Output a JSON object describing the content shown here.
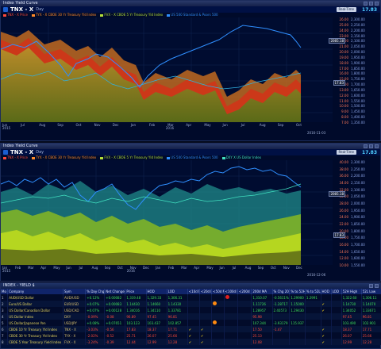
{
  "window1": {
    "title": "Index Yield Curve",
    "symbol": "TNX - X",
    "timeframe": "Day",
    "realtime_label": "Real-Time",
    "last_price": "17.83",
    "legend": [
      {
        "label": "TNX - X Price",
        "color": "#ff4a3a"
      },
      {
        "label": "TYX - X CBOE 30 Yr Treasury Yld Index",
        "color": "#ff8a2a"
      },
      {
        "label": "FVX - X CBOE 5 Yr Treasury Yld Index",
        "color": "#b4e03a"
      },
      {
        "label": "US 500 Standard & Poors 500",
        "color": "#2f8fff"
      }
    ],
    "x_months": [
      "Jun",
      "Jul",
      "Aug",
      "Sep",
      "Oct",
      "Nov",
      "Dec",
      "Jan",
      "Feb",
      "Mar",
      "Apr",
      "May",
      "Jun",
      "Jul",
      "Aug",
      "Sep",
      "Oct"
    ],
    "x_years": [
      "2015",
      "2016"
    ],
    "stamp": "2016-11-03",
    "y_left": [
      "26.00",
      "25.00",
      "24.00",
      "23.00",
      "22.00",
      "21.00",
      "20.00",
      "19.00",
      "18.00",
      "17.00",
      "16.00",
      "15.00",
      "14.00",
      "13.00",
      "12.00",
      "11.00",
      "10.00",
      "9.00",
      "8.00",
      "7.00"
    ],
    "y_right": [
      "2,300.00",
      "2,250.00",
      "2,200.00",
      "2,150.00",
      "2,100.00",
      "2,050.00",
      "2,000.00",
      "1,950.00",
      "1,900.00",
      "1,850.00",
      "1,800.00",
      "1,750.00",
      "1,700.00",
      "1,650.00",
      "1,600.00",
      "1,550.00",
      "1,500.00",
      "1,450.00",
      "1,400.00",
      "1,350.00"
    ],
    "pill_a": "2085.18",
    "pill_b": "17.83"
  },
  "window2": {
    "title": "Index Yield Curve",
    "symbol": "TNX - X",
    "timeframe": "Day",
    "realtime_label": "Real-Time",
    "last_price": "17.83",
    "legend": [
      {
        "label": "TNX - X Price",
        "color": "#ff4a3a"
      },
      {
        "label": "TYX - X CBOE 30 Yr Treasury Yld Index",
        "color": "#ff8a2a"
      },
      {
        "label": "FVX - X CBOE 5 Yr Treasury Yld Index",
        "color": "#b4e03a"
      },
      {
        "label": "US 500 Standard & Poors 500",
        "color": "#2f8fff"
      },
      {
        "label": "DXY X US Dollar Index",
        "color": "#40e0c0"
      }
    ],
    "x_months": [
      "Jan",
      "Feb",
      "Mar",
      "Apr",
      "May",
      "Jun",
      "Jul",
      "Aug",
      "Sep",
      "Oct",
      "Nov",
      "Dec",
      "Jan",
      "Feb",
      "Mar",
      "Apr",
      "May",
      "Jun",
      "Jul",
      "Aug",
      "Sep",
      "Oct",
      "Nov",
      "Dec"
    ],
    "x_years": [
      "2015",
      "2016"
    ],
    "stamp": "2016-12-06",
    "y_left": [
      "40.00",
      "38.00",
      "36.00",
      "34.00",
      "32.00",
      "30.00",
      "28.00",
      "26.00",
      "24.00",
      "22.00",
      "20.00",
      "18.00",
      "16.00",
      "14.00",
      "12.00",
      "10.00"
    ],
    "y_right": [
      "2,300.00",
      "2,250.00",
      "2,200.00",
      "2,150.00",
      "2,100.00",
      "2,050.00",
      "2,000.00",
      "1,950.00",
      "1,900.00",
      "1,850.00",
      "1,800.00",
      "1,750.00",
      "1,700.00",
      "1,650.00",
      "1,600.00",
      "1,550.00"
    ],
    "pill_a": "2085.18",
    "pill_b": "17.83"
  },
  "table": {
    "title": "INDEX - YIELD $",
    "columns": [
      "Mo",
      "Company",
      "Sym",
      "% Day Chg",
      "Net Change",
      "Price",
      "HOD",
      "LOD",
      "<10d MA",
      "<20d MA",
      "<50d MA",
      "<100d MA",
      "<200d MA",
      "200d MA",
      "% Chg 200d MA",
      "% to 52H",
      "% to 52L",
      "HOD",
      "LOD",
      "52H High",
      "52L Low"
    ],
    "rows": [
      {
        "mo": "1",
        "company": "AUD/USD Dollar",
        "sym": "AUD/USD",
        "pct": "+0.12%",
        "net": "+0.00082",
        "price": "1,319.48",
        "hod": "1,329.33",
        "lod": "1,306.31",
        "c10": "",
        "c20": "",
        "c50": "",
        "c100": "dot-red",
        "c200": "",
        "ma200": "1,310.07",
        "pct200": "-0.5611%",
        "to52h": "1.29900",
        "to52l": "1.2991",
        "hod2": "",
        "lod2": "",
        "h52": "1,322.60",
        "l52": "1,306.11",
        "sign": "pos"
      },
      {
        "mo": "2",
        "company": "Euro/US Dollar",
        "sym": "EUR/USD",
        "pct": "+0.07%",
        "net": "+0.00083",
        "price": "1.14430",
        "hod": "1.14660",
        "lod": "1.14330",
        "c10": "",
        "c20": "",
        "c50": "dot-orange",
        "c100": "",
        "c200": "",
        "ma200": "1.11726",
        "pct200": "-1.28717",
        "to52h": "1.15000",
        "to52l": "",
        "hod2": "check",
        "lod2": "",
        "h52": "1.14730",
        "l52": "1.14070",
        "sign": "pos"
      },
      {
        "mo": "3",
        "company": "US Dollar/Canadian Dollar",
        "sym": "USD/CAD",
        "pct": "+0.07%",
        "net": "+0.00128",
        "price": "1.34016",
        "hod": "1.34110",
        "lod": "1.33781",
        "c10": "",
        "c20": "",
        "c50": "",
        "c100": "",
        "c200": "",
        "ma200": "1.28957",
        "pct200": "2.40573",
        "to52h": "1.29430",
        "to52l": "",
        "hod2": "check",
        "lod2": "",
        "h52": "1.34052",
        "l52": "1.33671",
        "sign": "pos"
      },
      {
        "mo": "4",
        "company": "US Dollar Index",
        "sym": "DXY",
        "pct": "-0.09%",
        "net": "-0.08",
        "price": "96.89",
        "hod": "97.45",
        "lod": "96.81",
        "c10": "",
        "c20": "",
        "c50": "",
        "c100": "",
        "c200": "",
        "ma200": "95.98",
        "pct200": "",
        "to52h": "",
        "to52l": "",
        "hod2": "",
        "lod2": "",
        "h52": "97.45",
        "l52": "96.81",
        "sign": "neg"
      },
      {
        "mo": "5",
        "company": "US Dollar/Japanese Yen",
        "sym": "USD/JPY",
        "pct": "+0.08%",
        "net": "+0.07651",
        "price": "103.123",
        "hod": "103.437",
        "lod": "102.857",
        "c10": "",
        "c20": "",
        "c50": "dot-orange",
        "c100": "",
        "c200": "",
        "ma200": "107.344",
        "pct200": "-3.93179",
        "to52h": "115.937",
        "to52l": "",
        "hod2": "",
        "lod2": "",
        "h52": "103.490",
        "l52": "102.901",
        "sign": "pos"
      },
      {
        "mo": "6",
        "company": "CBOE 10 Yr Treasury Yld Index",
        "sym": "TNX - X",
        "pct": "-3.03%",
        "net": "-0.56",
        "price": "17.83",
        "hod": "18.37",
        "lod": "17.71",
        "c10": "check",
        "c20": "check",
        "c50": "",
        "c100": "",
        "c200": "",
        "ma200": "17.50",
        "pct200": "-1.47",
        "to52h": "",
        "to52l": "",
        "hod2": "check",
        "lod2": "",
        "h52": "18.37",
        "l52": "17.71",
        "sign": "neg"
      },
      {
        "mo": "7",
        "company": "CBOE 30 Yr Treasury Yld Index",
        "sym": "TYX - X",
        "pct": "-2.02%",
        "net": "-0.52",
        "price": "25.71",
        "hod": "26.07",
        "lod": "25.66",
        "c10": "check",
        "c20": "check",
        "c50": "",
        "c100": "",
        "c200": "",
        "ma200": "25.13",
        "pct200": "",
        "to52h": "",
        "to52l": "",
        "hod2": "check",
        "lod2": "",
        "h52": "26.07",
        "l52": "25.66",
        "sign": "neg"
      },
      {
        "mo": "8",
        "company": "CBOE 5 Year Treasury Yield Index",
        "sym": "FVX - X",
        "pct": "-3.24%",
        "net": "-0.39",
        "price": "12.44",
        "hod": "12.99",
        "lod": "12.28",
        "c10": "check",
        "c20": "check",
        "c50": "",
        "c100": "",
        "c200": "",
        "ma200": "12.08",
        "pct200": "",
        "to52h": "",
        "to52l": "",
        "hod2": "check",
        "lod2": "",
        "h52": "12.99",
        "l52": "12.28",
        "sign": "neg"
      }
    ]
  }
}
